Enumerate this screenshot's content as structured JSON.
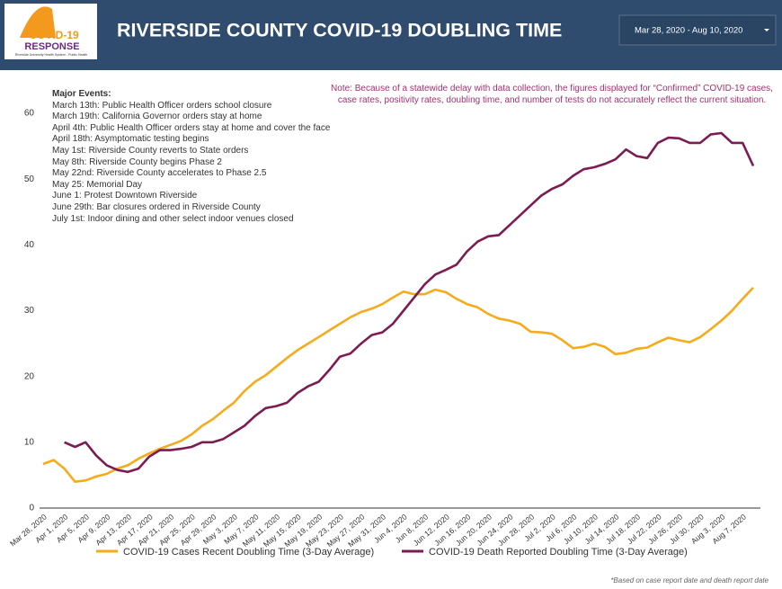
{
  "header": {
    "logo_title": "COVID-19",
    "logo_title2": "RESPONSE",
    "logo_subtitle": "Riverside University Health System - Public Health",
    "title": "RIVERSIDE COUNTY COVID-19 DOUBLING TIME",
    "date_range": "Mar 28, 2020 - Aug 10, 2020"
  },
  "chart_data": {
    "type": "line",
    "categories": [
      "Mar 28, 2020",
      null,
      "Apr 1, 2020",
      null,
      "Apr 5, 2020",
      null,
      "Apr 9, 2020",
      null,
      "Apr 13, 2020",
      null,
      "Apr 17, 2020",
      null,
      "Apr 21, 2020",
      null,
      "Apr 25, 2020",
      null,
      "Apr 29, 2020",
      null,
      "May 3, 2020",
      null,
      "May 7, 2020",
      null,
      "May 11, 2020",
      null,
      "May 15, 2020",
      null,
      "May 19, 2020",
      null,
      "May 23, 2020",
      null,
      "May 27, 2020",
      null,
      "May 31, 2020",
      null,
      "Jun 4, 2020",
      null,
      "Jun 8, 2020",
      null,
      "Jun 12, 2020",
      null,
      "Jun 16, 2020",
      null,
      "Jun 20, 2020",
      null,
      "Jun 24, 2020",
      null,
      "Jun 28, 2020",
      null,
      "Jul 2, 2020",
      null,
      "Jul 6, 2020",
      null,
      "Jul 10, 2020",
      null,
      "Jul 14, 2020",
      null,
      "Jul 18, 2020",
      null,
      "Jul 22, 2020",
      null,
      "Jul 26, 2020",
      null,
      "Jul 30, 2020",
      null,
      "Aug 3, 2020",
      null,
      "Aug 7, 2020",
      null
    ],
    "series": [
      {
        "name": "COVID-19 Cases Recent Doubling Time (3-Day Average)",
        "color": "#f5ab1b",
        "values": [
          6.7,
          7.3,
          6,
          4,
          4.2,
          4.8,
          5.2,
          6,
          6.5,
          7.5,
          8.3,
          9,
          9.6,
          10.2,
          11.2,
          12.5,
          13.5,
          14.8,
          16,
          17.8,
          19.2,
          20.2,
          21.5,
          22.8,
          24,
          25,
          26,
          27,
          28,
          29,
          29.8,
          30.3,
          31,
          32,
          32.9,
          32.5,
          32.5,
          33.2,
          32.8,
          31.8,
          31,
          30.5,
          29.5,
          28.8,
          28.5,
          28,
          26.8,
          26.7,
          26.5,
          25.5,
          24.3,
          24.5,
          25,
          24.5,
          23.4,
          23.6,
          24.2,
          24.4,
          25.2,
          25.9,
          25.5,
          25.2,
          26,
          27.2,
          28.5,
          30,
          31.8,
          33.5
        ]
      },
      {
        "name": "COVID-19 Death Reported Doubling Time (3-Day Average)",
        "color": "#7b1c52",
        "values": [
          null,
          null,
          10,
          9.3,
          10,
          8,
          6.5,
          5.8,
          5.5,
          6,
          7.8,
          8.8,
          8.8,
          9,
          9.3,
          10,
          10,
          10.5,
          11.5,
          12.5,
          14,
          15.2,
          15.5,
          16,
          17.5,
          18.5,
          19.2,
          21,
          23,
          23.5,
          25,
          26.3,
          26.7,
          28,
          30,
          32,
          34,
          35.5,
          36.2,
          37,
          39,
          40.5,
          41.3,
          41.5,
          43,
          44.5,
          46,
          47.5,
          48.5,
          49.2,
          50.5,
          51.5,
          51.8,
          52.3,
          53,
          54.5,
          53.5,
          53.2,
          55.5,
          56.3,
          56.2,
          55.5,
          55.5,
          56.8,
          57,
          55.5,
          55.5,
          52
        ]
      }
    ],
    "ylim": [
      0,
      60
    ],
    "yticks": [
      0,
      10,
      20,
      30,
      40,
      50,
      60
    ],
    "grid": false,
    "legend": "bottom",
    "events_title": "Major Events:",
    "events": [
      "March 13th: Public Health Officer orders school closure",
      "March 19th: California Governor orders stay at home",
      "April 4th: Public Health Officer orders stay at home and cover the face",
      "April 18th: Asymptomatic testing begins",
      "May 1st: Riverside County reverts to State orders",
      "May 8th: Riverside County begins Phase 2",
      "May 22nd: Riverside County accelerates to Phase 2.5",
      "May 25: Memorial Day",
      "June 1: Protest Downtown Riverside",
      "June 29th: Bar closures ordered in Riverside County",
      "July 1st: Indoor dining and other select indoor venues closed"
    ],
    "note": "Note: Because of a statewide delay with data collection, the figures displayed for “Confirmed” COVID-19 cases, case rates, positivity rates, doubling time, and number of tests do not accurately reflect the current situation.",
    "footnote": "*Based on case report date and death report date"
  }
}
